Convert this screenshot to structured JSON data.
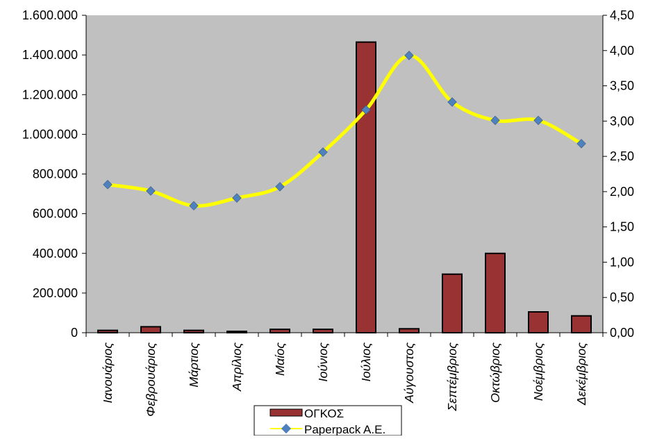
{
  "chart_data": {
    "type": "bar",
    "categories": [
      "Ιανουάριος",
      "Φεβρουάριος",
      "Μάρτιος",
      "Απρίλιος",
      "Μαίος",
      "Ιούνιος",
      "Ιούλιος",
      "Αύγουστος",
      "Σεπτέμβριος",
      "Οκτώβριος",
      "Νοέμβριος",
      "Δεκέμβριος"
    ],
    "series": [
      {
        "name": "ΟΓΚΟΣ",
        "type": "bar",
        "axis": "left",
        "color": "#993333",
        "values": [
          12000,
          30000,
          12000,
          7000,
          17000,
          17000,
          1465000,
          20000,
          295000,
          400000,
          105000,
          85000
        ]
      },
      {
        "name": "Paperpack A.E.",
        "type": "line",
        "axis": "right",
        "line_color": "#FFFF00",
        "marker_color": "#4F81BD",
        "values": [
          2.1,
          2.01,
          1.8,
          1.91,
          2.07,
          2.56,
          3.16,
          3.93,
          3.27,
          3.01,
          3.01,
          2.68
        ]
      }
    ],
    "y_left": {
      "ylim": [
        0,
        1600000
      ],
      "ticks": [
        "0",
        "200.000",
        "400.000",
        "600.000",
        "800.000",
        "1.000.000",
        "1.200.000",
        "1.400.000",
        "1.600.000"
      ]
    },
    "y_right": {
      "ylim": [
        0,
        4.5
      ],
      "ticks": [
        "0,00",
        "0,50",
        "1,00",
        "1,50",
        "2,00",
        "2,50",
        "3,00",
        "3,50",
        "4,00",
        "4,50"
      ]
    },
    "plot_background": "#C0C0C0",
    "grid": false,
    "legend_position": "bottom",
    "title": "",
    "xlabel": "",
    "ylabel": ""
  }
}
